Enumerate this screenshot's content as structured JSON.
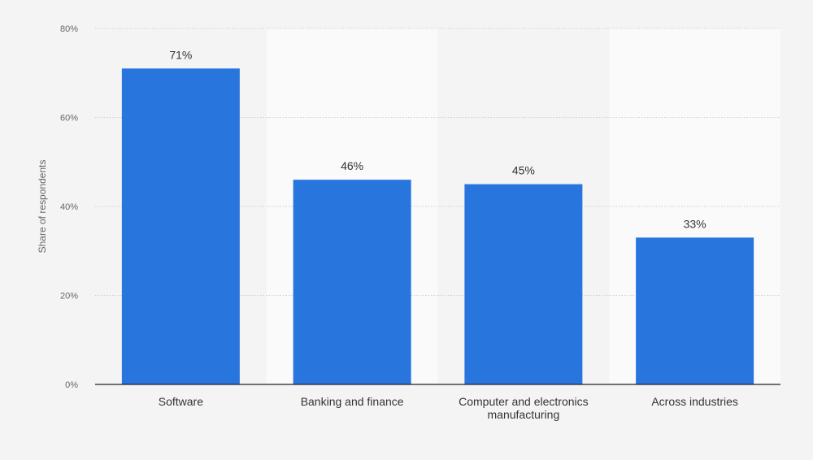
{
  "chart_data": {
    "type": "bar",
    "categories": [
      "Software",
      "Banking and finance",
      "Computer and electronics manufacturing",
      "Across industries"
    ],
    "category_lines": [
      [
        "Software"
      ],
      [
        "Banking and finance"
      ],
      [
        "Computer and electronics",
        "manufacturing"
      ],
      [
        "Across industries"
      ]
    ],
    "values": [
      71,
      46,
      45,
      33
    ],
    "data_labels": [
      "71%",
      "46%",
      "45%",
      "33%"
    ],
    "ylabel": "Share of respondents",
    "ylim": [
      0,
      80
    ],
    "yticks": [
      0,
      20,
      40,
      60,
      80
    ],
    "ytick_labels": [
      "0%",
      "20%",
      "40%",
      "60%",
      "80%"
    ],
    "grid": true,
    "colors": {
      "bar": "#2876dd",
      "band_light": "#fafafa",
      "band_dark": "#f4f4f4",
      "text": "#333333",
      "axis": "#222222",
      "grid": "#cfcfcf"
    }
  }
}
